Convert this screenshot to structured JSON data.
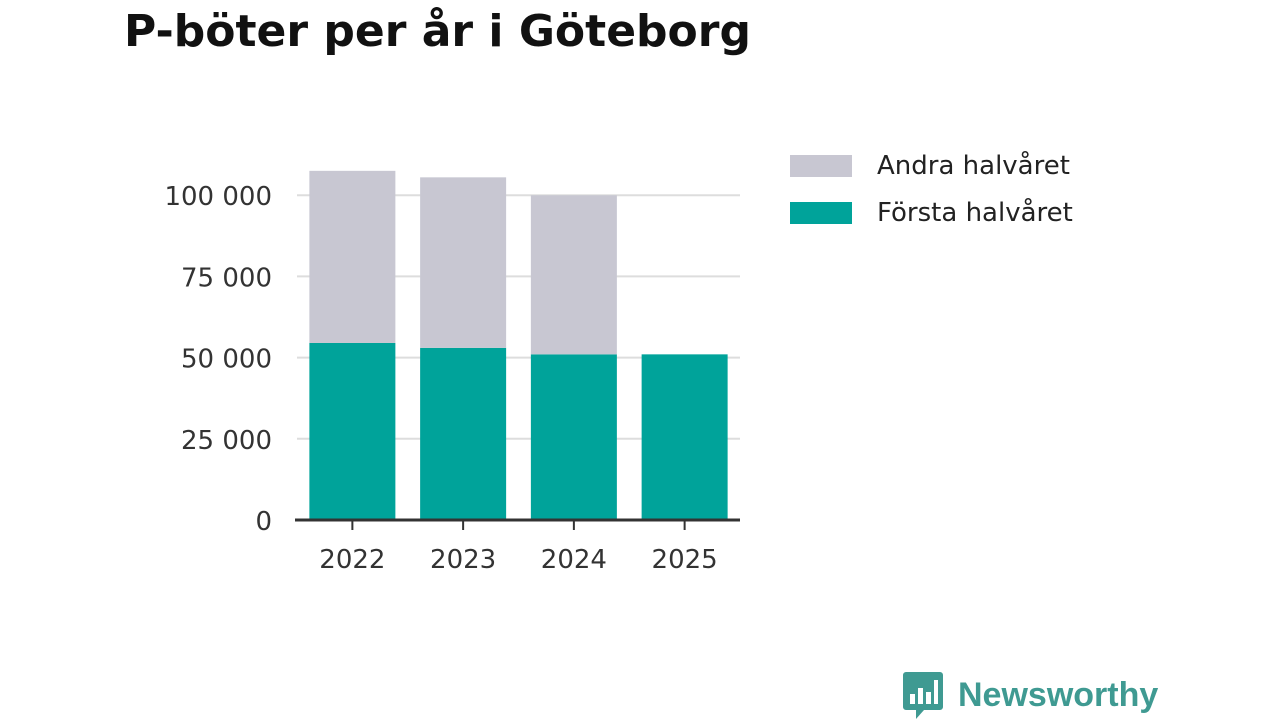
{
  "colors": {
    "first_half": "#00a39a",
    "second_half": "#c8c7d2",
    "grid": "#dddddd",
    "axis": "#333333",
    "brand": "#3f9a92"
  },
  "brand": {
    "name": "Newsworthy",
    "icon": "bar-chart-speech-bubble-icon"
  },
  "chart_data": {
    "type": "bar",
    "stacked": true,
    "title": "P-böter per år i Göteborg",
    "xlabel": "",
    "ylabel": "",
    "categories": [
      "2022",
      "2023",
      "2024",
      "2025"
    ],
    "series": [
      {
        "name": "Första halvåret",
        "color_key": "first_half",
        "values": [
          54500,
          53000,
          51000,
          51000
        ]
      },
      {
        "name": "Andra halvåret",
        "color_key": "second_half",
        "values": [
          53000,
          52500,
          49000,
          0
        ]
      }
    ],
    "ylim": [
      0,
      107500
    ],
    "yticks": [
      0,
      25000,
      50000,
      75000,
      100000
    ],
    "ytick_labels": [
      "0",
      "25 000",
      "50 000",
      "75 000",
      "100 000"
    ],
    "grid": true,
    "legend_position": "right",
    "legend": [
      "Andra halvåret",
      "Första halvåret"
    ]
  }
}
